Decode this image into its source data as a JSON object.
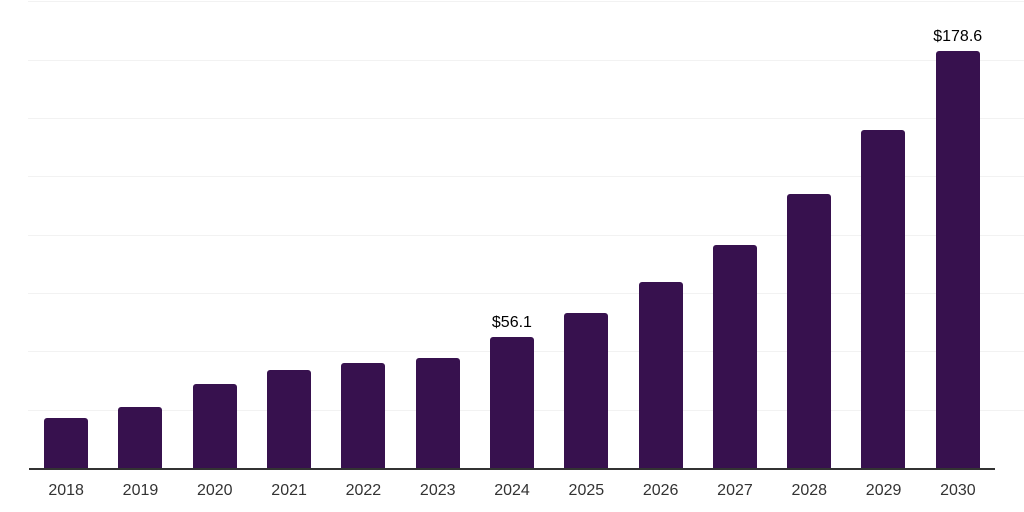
{
  "chart_data": {
    "type": "bar",
    "title": "",
    "xlabel": "",
    "ylabel": "",
    "categories": [
      "2018",
      "2019",
      "2020",
      "2021",
      "2022",
      "2023",
      "2024",
      "2025",
      "2026",
      "2027",
      "2028",
      "2029",
      "2030"
    ],
    "values": [
      21.4,
      26.1,
      36.0,
      41.9,
      45.0,
      47.2,
      56.1,
      66.4,
      79.6,
      95.7,
      117.4,
      144.7,
      178.6
    ],
    "value_labels": [
      "",
      "",
      "",
      "",
      "",
      "",
      "$56.1",
      "",
      "",
      "",
      "",
      "",
      "$178.6"
    ],
    "ylim": [
      0,
      200
    ],
    "gridline_interval": 25,
    "grid": "horizontal",
    "legend": "none",
    "bar_color": "#37114E"
  },
  "colors": {
    "background": "#ffffff",
    "bar": "#37114E",
    "gridline": "#f2f2f2",
    "axis_line": "#333333",
    "tick_label": "#333333",
    "value_label": "#000000"
  }
}
